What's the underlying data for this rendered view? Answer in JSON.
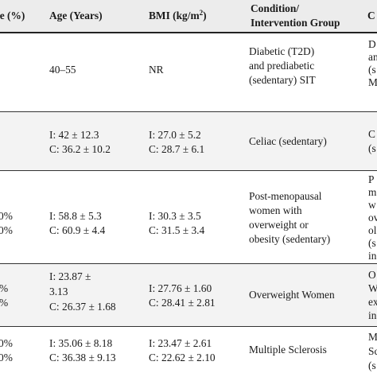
{
  "headers": {
    "col0": "le (%)",
    "col1": "Age (Years)",
    "col2_main": "BMI (kg/m",
    "col2_sup": "2",
    "col2_close": ")",
    "col3_line1": "Condition/",
    "col3_line2": "Intervention Group",
    "col4": "C"
  },
  "rows": [
    {
      "col0": [],
      "age": [
        "40–55"
      ],
      "bmi": [
        "NR"
      ],
      "condition": [
        "Diabetic (T2D)",
        "and prediabetic",
        "(sedentary) SIT"
      ],
      "col4": [
        "D",
        "an",
        "(s",
        "M"
      ]
    },
    {
      "col0": [],
      "age": [
        "I: 42 ± 12.3",
        "C: 36.2 ± 10.2"
      ],
      "bmi": [
        "I: 27.0 ± 5.2",
        "C: 28.7 ± 6.1"
      ],
      "condition": [
        "Celiac (sedentary)"
      ],
      "col4": [
        "C",
        "(s"
      ]
    },
    {
      "col0": [
        "0%",
        "0%"
      ],
      "age": [
        "I: 58.8 ± 5.3",
        "C: 60.9 ± 4.4"
      ],
      "bmi": [
        "I: 30.3 ± 3.5",
        "C: 31.5 ± 3.4"
      ],
      "condition": [
        "Post-menopausal",
        "women with",
        "overweight or",
        "obesity (sedentary)"
      ],
      "col4": [
        "P",
        "m",
        "w",
        "ov",
        "ol",
        "(s",
        "in"
      ]
    },
    {
      "col0": [
        "%",
        "%"
      ],
      "age": [
        "I: 23.87 ±",
        "3.13",
        "C: 26.37 ± 1.68"
      ],
      "bmi": [
        "I: 27.76 ± 1.60",
        "C: 28.41 ± 2.81"
      ],
      "condition": [
        "Overweight Women"
      ],
      "col4": [
        "O",
        "W",
        "ex",
        "in"
      ]
    },
    {
      "col0": [
        "0%",
        "0%"
      ],
      "age": [
        "I: 35.06 ± 8.18",
        "C: 36.38 ± 9.13"
      ],
      "bmi": [
        "I: 23.47 ± 2.61",
        "C: 22.62 ± 2.10"
      ],
      "condition": [
        "Multiple Sclerosis"
      ],
      "col4": [
        "M",
        "Sc",
        "(s"
      ]
    }
  ]
}
